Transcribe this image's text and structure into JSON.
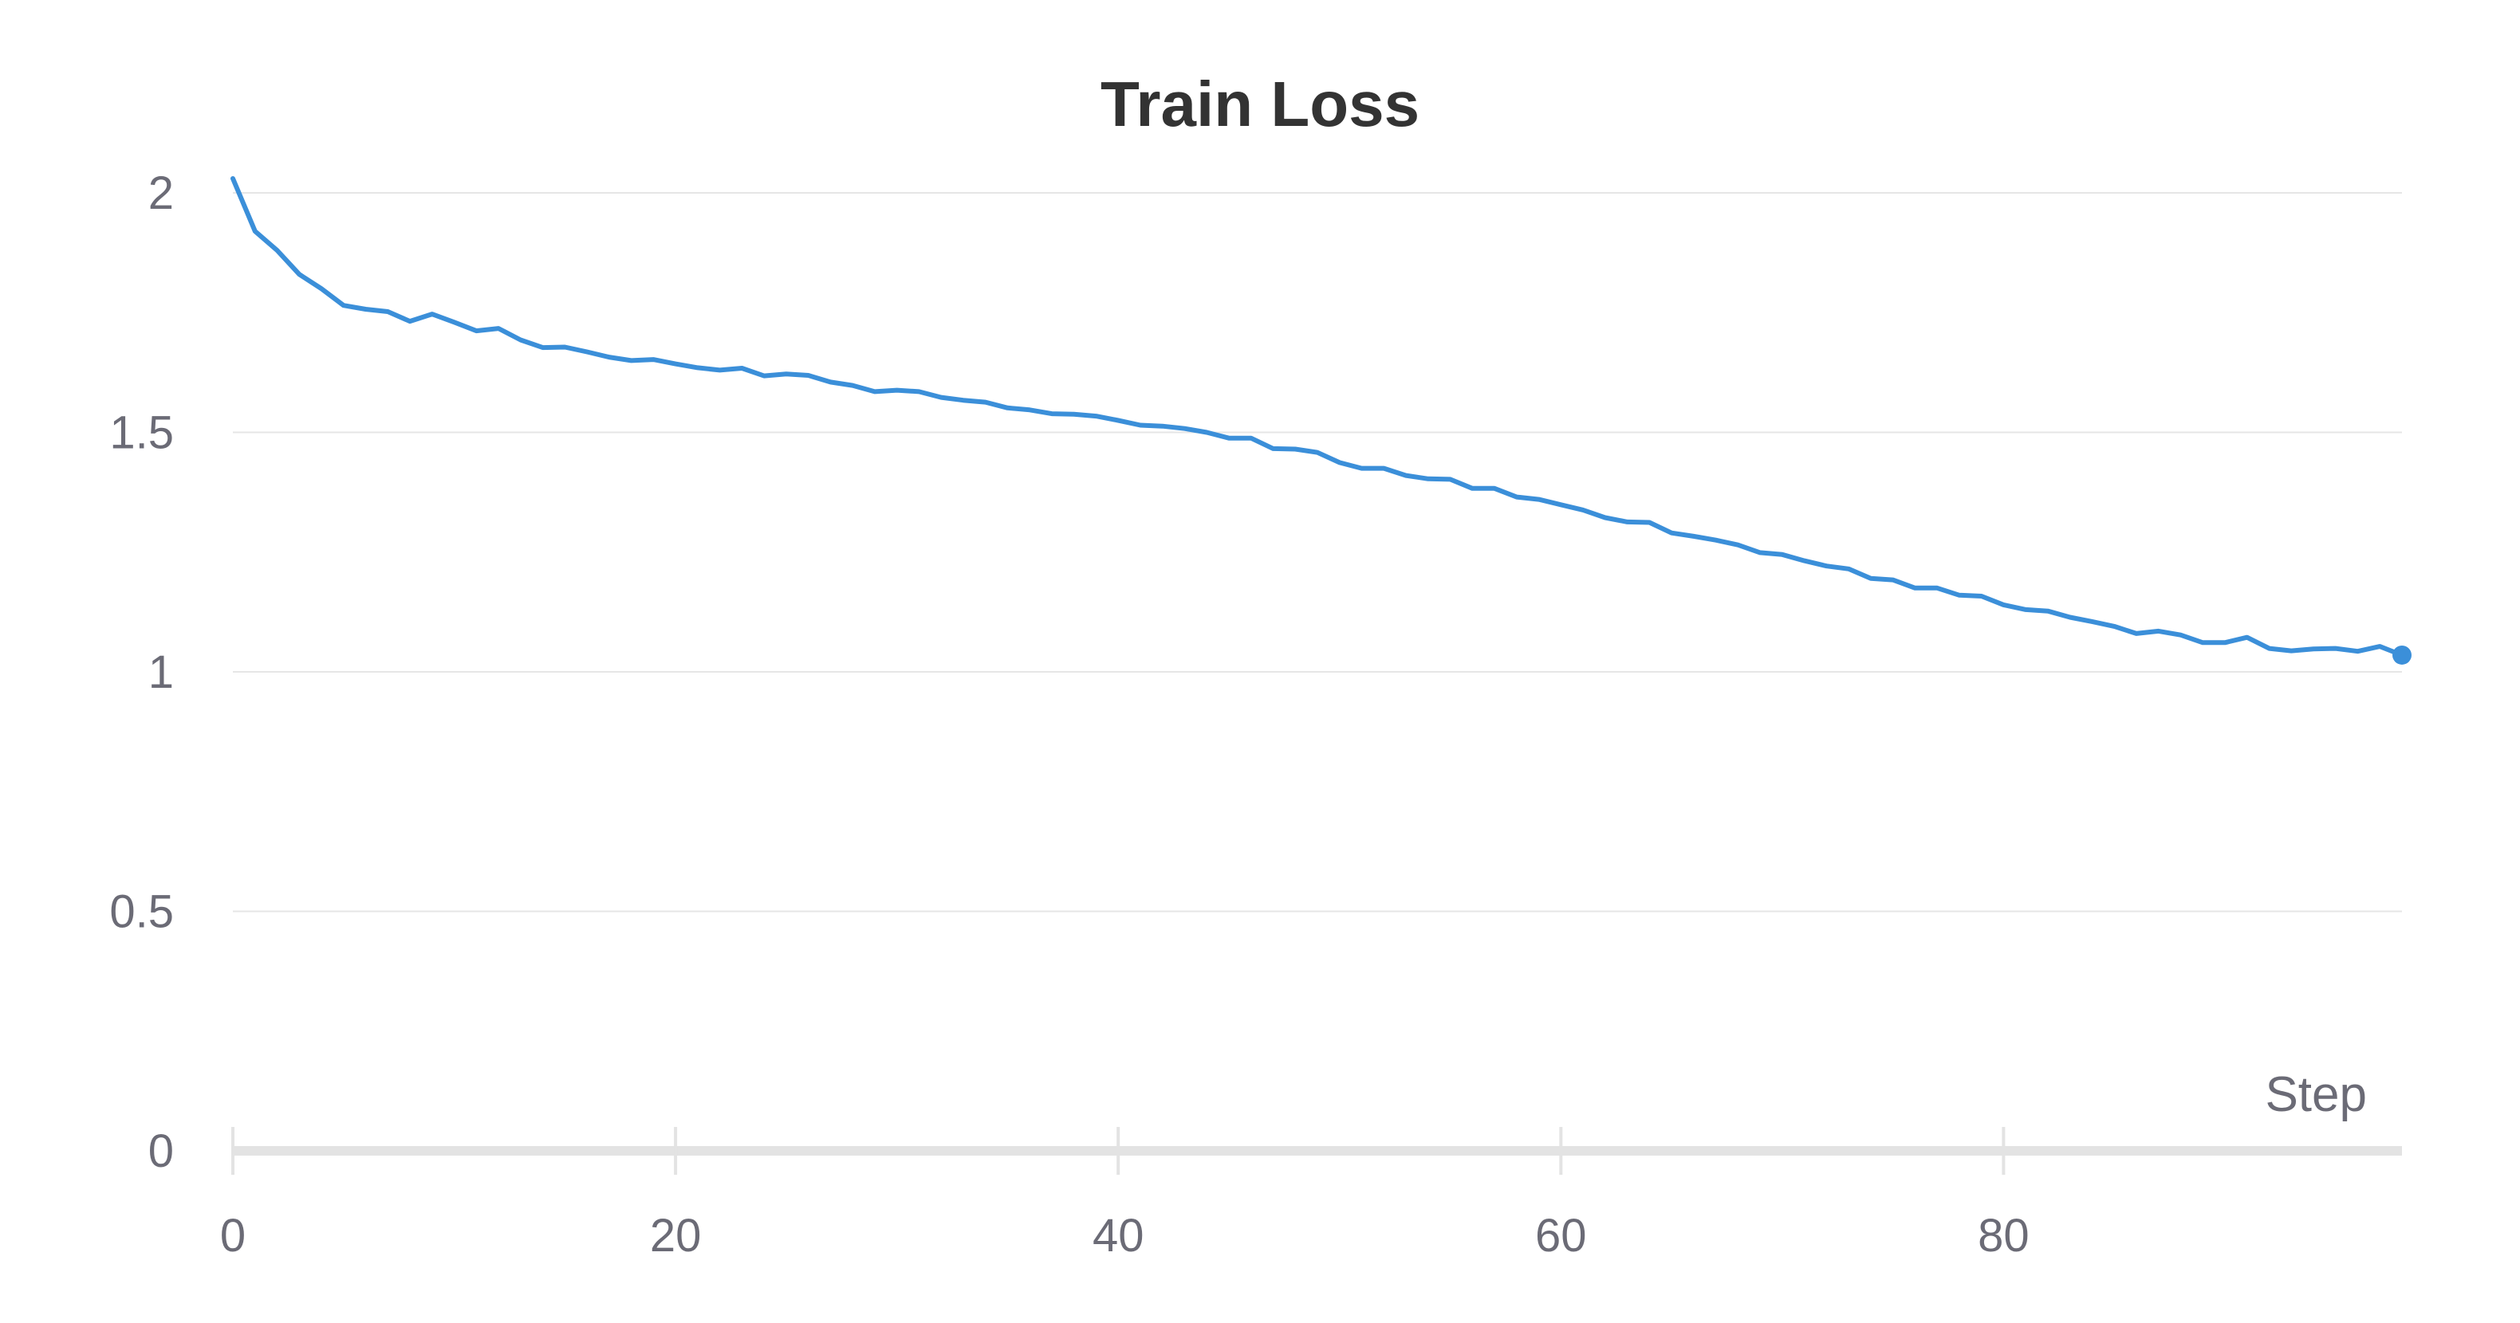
{
  "chart_data": {
    "type": "line",
    "title": "Train Loss",
    "xlabel": "Step",
    "ylabel": "",
    "xlim": [
      0,
      98
    ],
    "ylim": [
      0,
      2.05
    ],
    "x_ticks": [
      0,
      20,
      40,
      60,
      80
    ],
    "x_tick_labels": [
      "0",
      "20",
      "40",
      "60",
      "80"
    ],
    "y_ticks": [
      0,
      0.5,
      1,
      1.5,
      2
    ],
    "y_tick_labels": [
      "0",
      "0.5",
      "1",
      "1.5",
      "2"
    ],
    "grid": true,
    "legend": "none",
    "end_marker": true,
    "series": [
      {
        "color": "#3b8fd9",
        "x": [
          0,
          1,
          2,
          3,
          4,
          5,
          6,
          7,
          8,
          9,
          10,
          11,
          12,
          13,
          14,
          15,
          16,
          17,
          18,
          19,
          20,
          21,
          22,
          23,
          24,
          25,
          26,
          27,
          28,
          29,
          30,
          31,
          32,
          33,
          34,
          35,
          36,
          37,
          38,
          39,
          40,
          41,
          42,
          43,
          44,
          45,
          46,
          47,
          48,
          49,
          50,
          51,
          52,
          53,
          54,
          55,
          56,
          57,
          58,
          59,
          60,
          61,
          62,
          63,
          64,
          65,
          66,
          67,
          68,
          69,
          70,
          71,
          72,
          73,
          74,
          75,
          76,
          77,
          78,
          79,
          80,
          81,
          82,
          83,
          84,
          85,
          86,
          87,
          88,
          89,
          90,
          91,
          92,
          93,
          94,
          95,
          96,
          97,
          98
        ],
        "y": [
          2.03,
          1.92,
          1.88,
          1.83,
          1.8,
          1.765,
          1.757,
          1.752,
          1.732,
          1.747,
          1.73,
          1.712,
          1.717,
          1.693,
          1.677,
          1.678,
          1.668,
          1.657,
          1.65,
          1.652,
          1.643,
          1.635,
          1.63,
          1.634,
          1.618,
          1.622,
          1.619,
          1.605,
          1.598,
          1.585,
          1.588,
          1.585,
          1.573,
          1.567,
          1.563,
          1.551,
          1.547,
          1.539,
          1.538,
          1.534,
          1.525,
          1.515,
          1.513,
          1.508,
          1.5,
          1.488,
          1.488,
          1.466,
          1.465,
          1.458,
          1.437,
          1.425,
          1.425,
          1.41,
          1.403,
          1.402,
          1.383,
          1.383,
          1.365,
          1.36,
          1.349,
          1.338,
          1.322,
          1.313,
          1.312,
          1.29,
          1.283,
          1.275,
          1.265,
          1.249,
          1.245,
          1.232,
          1.221,
          1.215,
          1.195,
          1.192,
          1.175,
          1.175,
          1.16,
          1.158,
          1.14,
          1.13,
          1.127,
          1.114,
          1.105,
          1.095,
          1.08,
          1.085,
          1.077,
          1.061,
          1.061,
          1.072,
          1.049,
          1.044,
          1.048,
          1.049,
          1.043,
          1.053,
          1.035
        ]
      }
    ]
  }
}
